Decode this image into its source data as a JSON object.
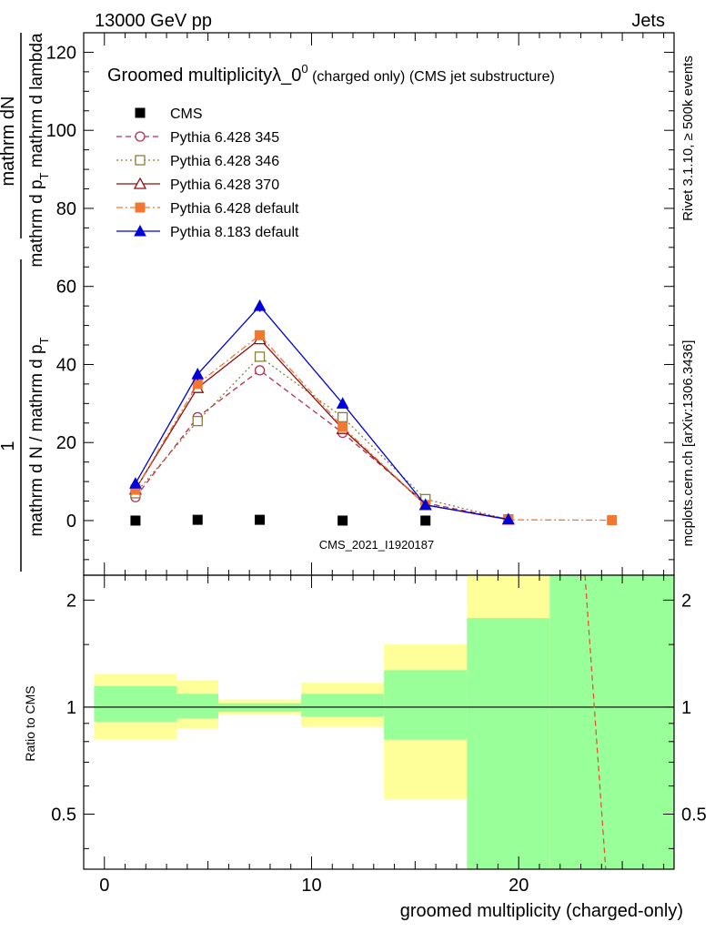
{
  "header": {
    "left": "13000 GeV pp",
    "right": "Jets"
  },
  "side_text": {
    "rivet": "Rivet 3.1.10, ≥ 500k events",
    "mcplots": "mcplots.cern.ch [arXiv:1306.3436]"
  },
  "chart_data": [
    {
      "type": "line",
      "panel": "main",
      "title": "Groomed multiplicityλ_0",
      "title_sup": "0",
      "title_suffix": " (charged only) (CMS jet substructure)",
      "ylabel_numerator": "mathrm dN",
      "ylabel_denominator_part1": "mathrm d p",
      "ylabel_denominator_part1_sub": "T",
      "ylabel_denominator_part2": " mathrm d lambda",
      "ylabel_prefix": "1",
      "ylabel_lower": "mathrm d N / mathrm d p",
      "ylabel_lower_sub": "T",
      "xlabel": "groomed multiplicity (charged-only)",
      "xlim": [
        -1.0,
        27.5
      ],
      "ylim": [
        -14,
        125
      ],
      "yticks": [
        0,
        20,
        40,
        60,
        80,
        100,
        120
      ],
      "xticks": [
        0,
        10,
        20
      ],
      "x": [
        1.5,
        4.5,
        7.5,
        11.5,
        15.5,
        19.5,
        24.5
      ],
      "watermark": "CMS_2021_I1920187",
      "series": [
        {
          "name": "CMS",
          "color": "#000000",
          "marker": "square-filled",
          "line": "none",
          "values": [
            0,
            0.2,
            0.2,
            0,
            0,
            null,
            null
          ]
        },
        {
          "name": "Pythia 6.428 345",
          "color": "#b03050",
          "marker": "circle-open",
          "line": "dashed",
          "values": [
            6,
            26.5,
            38.5,
            22.5,
            4.5,
            0.3,
            null
          ]
        },
        {
          "name": "Pythia 6.428 346",
          "color": "#8b7d3a",
          "marker": "square-open",
          "line": "dotted",
          "values": [
            7,
            25.5,
            42,
            26.5,
            5.5,
            0.3,
            null
          ]
        },
        {
          "name": "Pythia 6.428 370",
          "color": "#8b1010",
          "marker": "triangle-open",
          "line": "solid",
          "values": [
            8,
            34,
            46.5,
            23.5,
            4,
            0.3,
            null
          ]
        },
        {
          "name": "Pythia 6.428 default",
          "color": "#f07830",
          "marker": "square-filled",
          "line": "dashdot",
          "values": [
            8,
            35,
            47.5,
            24,
            4,
            0.2,
            0.1
          ]
        },
        {
          "name": "Pythia 8.183 default",
          "color": "#0000dd",
          "marker": "triangle-filled",
          "line": "solid",
          "values": [
            9.5,
            37.5,
            55,
            30,
            4,
            0.3,
            null
          ],
          "errors": [
            1.0,
            1.5,
            1.5,
            1.0,
            0.5,
            0.1,
            null
          ]
        }
      ]
    },
    {
      "type": "area",
      "panel": "ratio",
      "ylabel": "Ratio to CMS",
      "ylim": [
        0.35,
        2.35
      ],
      "yticks": [
        0.5,
        1,
        2
      ],
      "ytick_labels": [
        "0.5",
        "1",
        "2"
      ],
      "bins": [
        {
          "x_low": -0.5,
          "x_high": 3.5,
          "green_low": 0.91,
          "green_high": 1.145,
          "yellow_low": 0.81,
          "yellow_high": 1.24
        },
        {
          "x_low": 3.5,
          "x_high": 5.5,
          "green_low": 0.93,
          "green_high": 1.09,
          "yellow_low": 0.87,
          "yellow_high": 1.19
        },
        {
          "x_low": 5.5,
          "x_high": 9.5,
          "green_low": 0.97,
          "green_high": 1.025,
          "yellow_low": 0.955,
          "yellow_high": 1.05
        },
        {
          "x_low": 9.5,
          "x_high": 13.5,
          "green_low": 0.94,
          "green_high": 1.09,
          "yellow_low": 0.88,
          "yellow_high": 1.17
        },
        {
          "x_low": 13.5,
          "x_high": 17.5,
          "green_low": 0.81,
          "green_high": 1.27,
          "yellow_low": 0.55,
          "yellow_high": 1.5
        },
        {
          "x_low": 17.5,
          "x_high": 21.5,
          "green_low": 0.35,
          "green_high": 1.78,
          "yellow_low": 0.35,
          "yellow_high": 2.35
        },
        {
          "x_low": 21.5,
          "x_high": 27.5,
          "green_low": 0.35,
          "green_high": 2.35,
          "yellow_low": 0.35,
          "yellow_high": 2.35
        }
      ],
      "ratio_line": {
        "color": "#f05030",
        "points": [
          [
            23.2,
            2.35
          ],
          [
            24.2,
            0.35
          ]
        ]
      }
    }
  ],
  "colors": {
    "green_band": "#99ff99",
    "yellow_band": "#ffff99",
    "side_text": "#888888",
    "watermark": "#999999"
  }
}
